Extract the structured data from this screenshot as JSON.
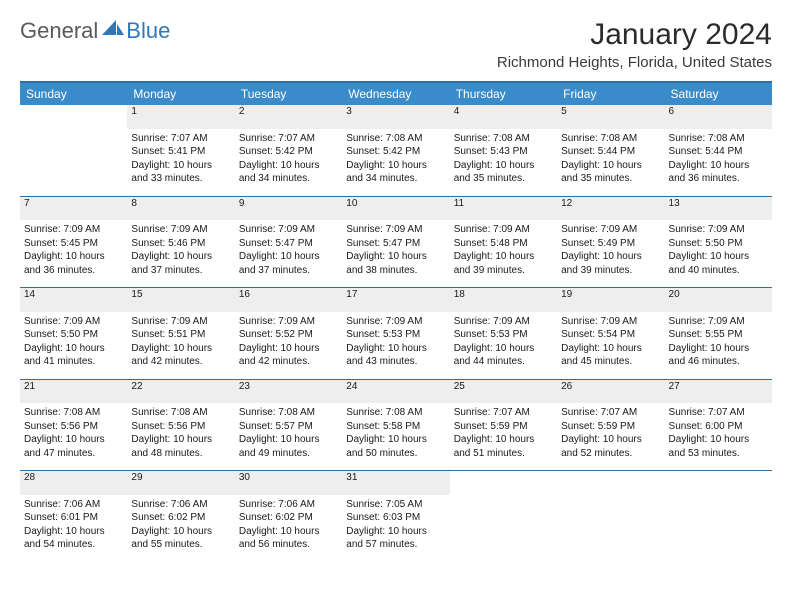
{
  "brand": {
    "part1": "General",
    "part2": "Blue"
  },
  "colors": {
    "header_bg": "#3a8bc9",
    "header_border": "#2f6fa3",
    "daynum_bg": "#eeeeee",
    "brand_blue": "#2f78b8",
    "brand_gray": "#5a5a5a",
    "text": "#1a1a1a"
  },
  "title": "January 2024",
  "location": "Richmond Heights, Florida, United States",
  "day_headers": [
    "Sunday",
    "Monday",
    "Tuesday",
    "Wednesday",
    "Thursday",
    "Friday",
    "Saturday"
  ],
  "weeks": [
    [
      null,
      {
        "n": "1",
        "sr": "7:07 AM",
        "ss": "5:41 PM",
        "dl": "10 hours and 33 minutes."
      },
      {
        "n": "2",
        "sr": "7:07 AM",
        "ss": "5:42 PM",
        "dl": "10 hours and 34 minutes."
      },
      {
        "n": "3",
        "sr": "7:08 AM",
        "ss": "5:42 PM",
        "dl": "10 hours and 34 minutes."
      },
      {
        "n": "4",
        "sr": "7:08 AM",
        "ss": "5:43 PM",
        "dl": "10 hours and 35 minutes."
      },
      {
        "n": "5",
        "sr": "7:08 AM",
        "ss": "5:44 PM",
        "dl": "10 hours and 35 minutes."
      },
      {
        "n": "6",
        "sr": "7:08 AM",
        "ss": "5:44 PM",
        "dl": "10 hours and 36 minutes."
      }
    ],
    [
      {
        "n": "7",
        "sr": "7:09 AM",
        "ss": "5:45 PM",
        "dl": "10 hours and 36 minutes."
      },
      {
        "n": "8",
        "sr": "7:09 AM",
        "ss": "5:46 PM",
        "dl": "10 hours and 37 minutes."
      },
      {
        "n": "9",
        "sr": "7:09 AM",
        "ss": "5:47 PM",
        "dl": "10 hours and 37 minutes."
      },
      {
        "n": "10",
        "sr": "7:09 AM",
        "ss": "5:47 PM",
        "dl": "10 hours and 38 minutes."
      },
      {
        "n": "11",
        "sr": "7:09 AM",
        "ss": "5:48 PM",
        "dl": "10 hours and 39 minutes."
      },
      {
        "n": "12",
        "sr": "7:09 AM",
        "ss": "5:49 PM",
        "dl": "10 hours and 39 minutes."
      },
      {
        "n": "13",
        "sr": "7:09 AM",
        "ss": "5:50 PM",
        "dl": "10 hours and 40 minutes."
      }
    ],
    [
      {
        "n": "14",
        "sr": "7:09 AM",
        "ss": "5:50 PM",
        "dl": "10 hours and 41 minutes."
      },
      {
        "n": "15",
        "sr": "7:09 AM",
        "ss": "5:51 PM",
        "dl": "10 hours and 42 minutes."
      },
      {
        "n": "16",
        "sr": "7:09 AM",
        "ss": "5:52 PM",
        "dl": "10 hours and 42 minutes."
      },
      {
        "n": "17",
        "sr": "7:09 AM",
        "ss": "5:53 PM",
        "dl": "10 hours and 43 minutes."
      },
      {
        "n": "18",
        "sr": "7:09 AM",
        "ss": "5:53 PM",
        "dl": "10 hours and 44 minutes."
      },
      {
        "n": "19",
        "sr": "7:09 AM",
        "ss": "5:54 PM",
        "dl": "10 hours and 45 minutes."
      },
      {
        "n": "20",
        "sr": "7:09 AM",
        "ss": "5:55 PM",
        "dl": "10 hours and 46 minutes."
      }
    ],
    [
      {
        "n": "21",
        "sr": "7:08 AM",
        "ss": "5:56 PM",
        "dl": "10 hours and 47 minutes."
      },
      {
        "n": "22",
        "sr": "7:08 AM",
        "ss": "5:56 PM",
        "dl": "10 hours and 48 minutes."
      },
      {
        "n": "23",
        "sr": "7:08 AM",
        "ss": "5:57 PM",
        "dl": "10 hours and 49 minutes."
      },
      {
        "n": "24",
        "sr": "7:08 AM",
        "ss": "5:58 PM",
        "dl": "10 hours and 50 minutes."
      },
      {
        "n": "25",
        "sr": "7:07 AM",
        "ss": "5:59 PM",
        "dl": "10 hours and 51 minutes."
      },
      {
        "n": "26",
        "sr": "7:07 AM",
        "ss": "5:59 PM",
        "dl": "10 hours and 52 minutes."
      },
      {
        "n": "27",
        "sr": "7:07 AM",
        "ss": "6:00 PM",
        "dl": "10 hours and 53 minutes."
      }
    ],
    [
      {
        "n": "28",
        "sr": "7:06 AM",
        "ss": "6:01 PM",
        "dl": "10 hours and 54 minutes."
      },
      {
        "n": "29",
        "sr": "7:06 AM",
        "ss": "6:02 PM",
        "dl": "10 hours and 55 minutes."
      },
      {
        "n": "30",
        "sr": "7:06 AM",
        "ss": "6:02 PM",
        "dl": "10 hours and 56 minutes."
      },
      {
        "n": "31",
        "sr": "7:05 AM",
        "ss": "6:03 PM",
        "dl": "10 hours and 57 minutes."
      },
      null,
      null,
      null
    ]
  ],
  "labels": {
    "sunrise": "Sunrise: ",
    "sunset": "Sunset: ",
    "daylight": "Daylight: "
  }
}
